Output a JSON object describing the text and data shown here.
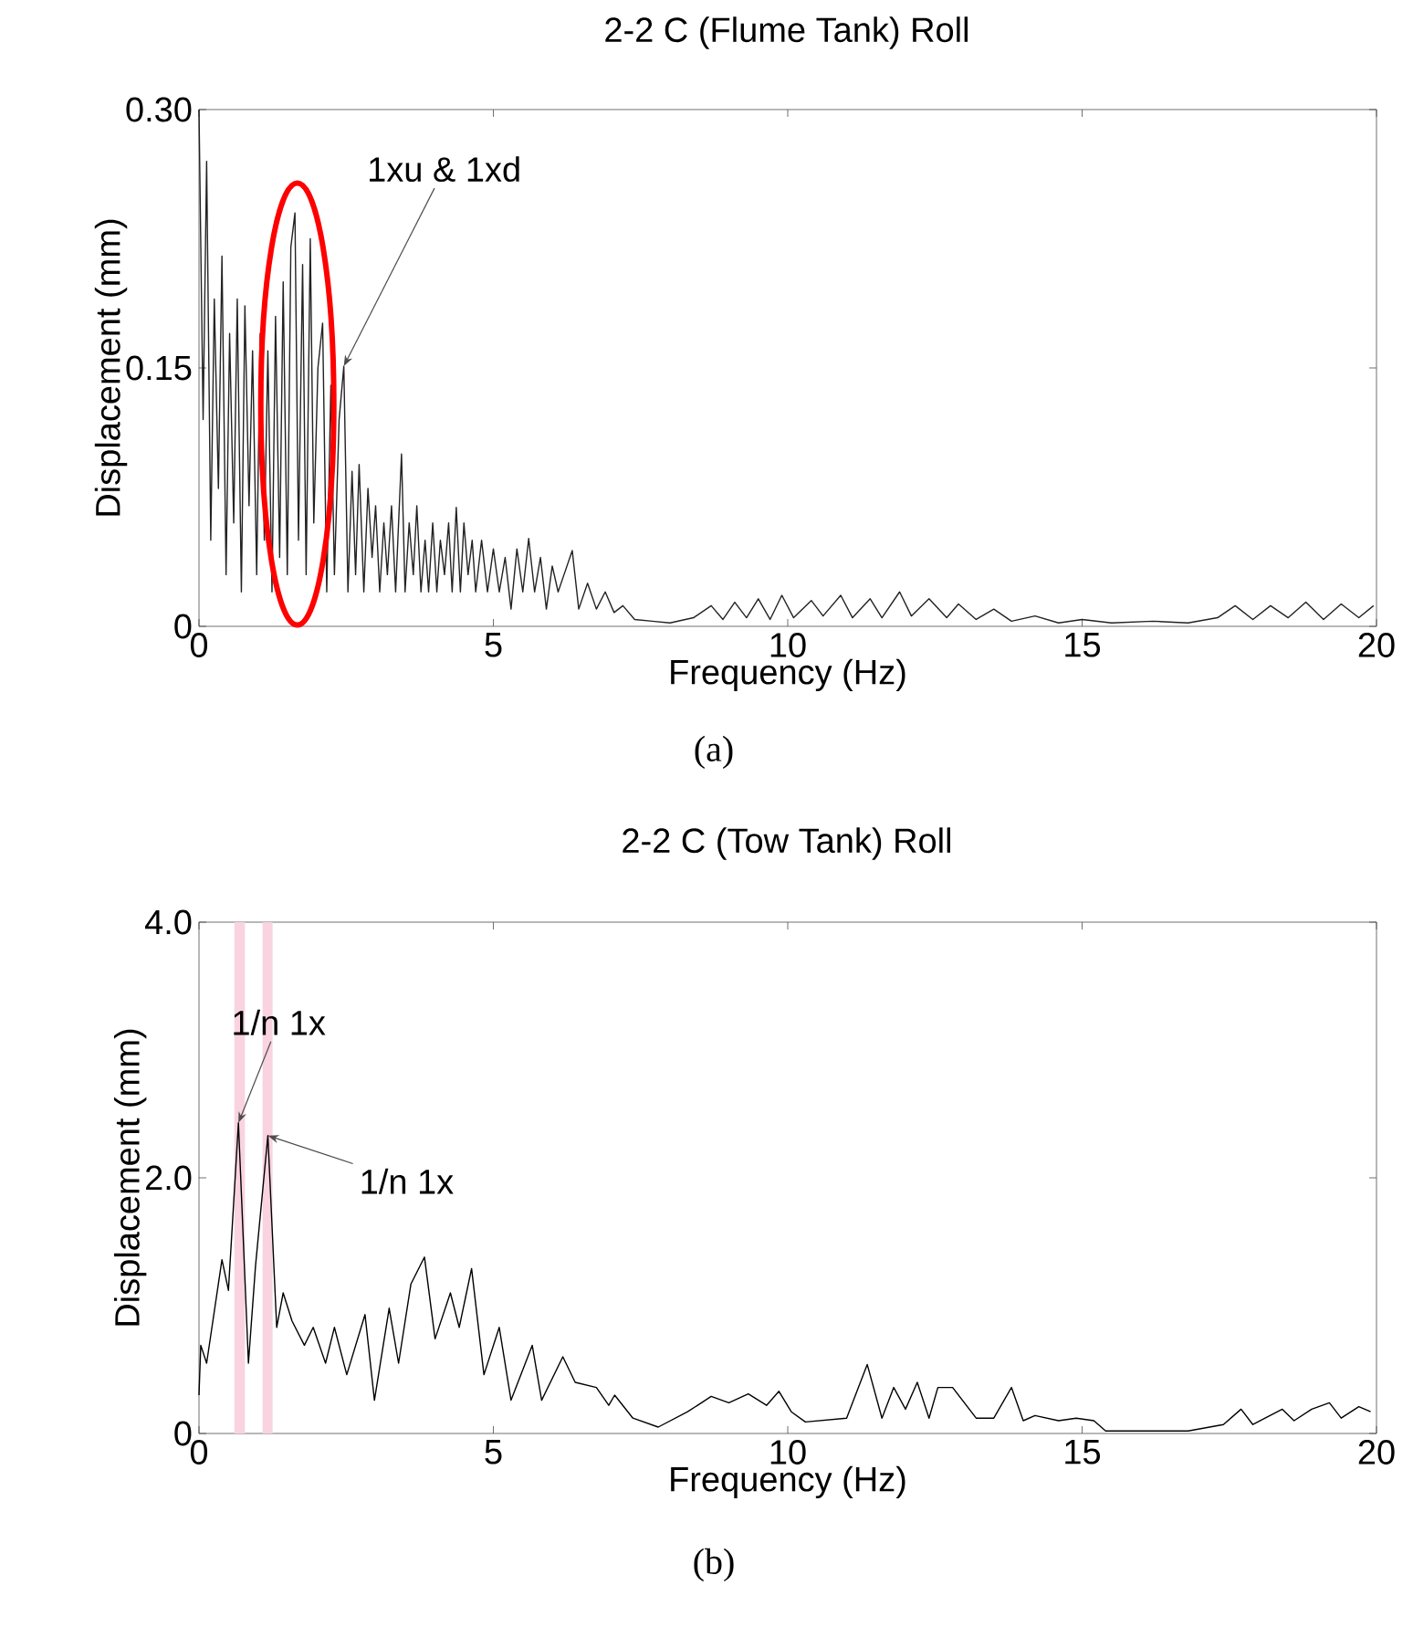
{
  "chart_data": [
    {
      "type": "line",
      "title": "2-2 C (Flume Tank) Roll",
      "xlabel": "Frequency (Hz)",
      "ylabel": "Displacement (mm)",
      "xlim": [
        0,
        20
      ],
      "ylim": [
        0,
        0.3
      ],
      "xticks": [
        0,
        5,
        10,
        15,
        20
      ],
      "yticks": [
        0,
        0.15,
        {
          "value": 0.3,
          "label": "0.30"
        }
      ],
      "series": [
        {
          "color": "#222222",
          "x": [
            0,
            0.07,
            0.13,
            0.2,
            0.26,
            0.33,
            0.39,
            0.46,
            0.52,
            0.59,
            0.65,
            0.72,
            0.78,
            0.85,
            0.91,
            0.98,
            1.04,
            1.11,
            1.17,
            1.24,
            1.3,
            1.37,
            1.43,
            1.5,
            1.56,
            1.63,
            1.69,
            1.76,
            1.82,
            1.89,
            1.95,
            2.02,
            2.1,
            2.17,
            2.24,
            2.3,
            2.38,
            2.46,
            2.53,
            2.6,
            2.66,
            2.72,
            2.8,
            2.87,
            2.94,
            3.0,
            3.07,
            3.14,
            3.2,
            3.27,
            3.34,
            3.44,
            3.5,
            3.57,
            3.64,
            3.7,
            3.77,
            3.84,
            3.9,
            3.97,
            4.04,
            4.1,
            4.17,
            4.24,
            4.3,
            4.37,
            4.44,
            4.5,
            4.57,
            4.64,
            4.7,
            4.8,
            4.9,
            5.0,
            5.1,
            5.2,
            5.3,
            5.4,
            5.5,
            5.6,
            5.7,
            5.8,
            5.9,
            6.0,
            6.1,
            6.2,
            6.34,
            6.45,
            6.6,
            6.75,
            6.9,
            7.05,
            7.2,
            7.4,
            7.7,
            8.0,
            8.4,
            8.7,
            8.9,
            9.1,
            9.3,
            9.5,
            9.7,
            9.9,
            10.1,
            10.4,
            10.6,
            10.9,
            11.1,
            11.4,
            11.6,
            11.9,
            12.1,
            12.4,
            12.7,
            12.9,
            13.2,
            13.5,
            13.8,
            14.2,
            14.6,
            15.0,
            15.5,
            16.2,
            16.8,
            17.3,
            17.6,
            17.9,
            18.2,
            18.5,
            18.8,
            19.1,
            19.4,
            19.7,
            19.95
          ],
          "values": [
            0.3,
            0.12,
            0.27,
            0.05,
            0.19,
            0.08,
            0.215,
            0.03,
            0.17,
            0.06,
            0.19,
            0.02,
            0.186,
            0.07,
            0.16,
            0.03,
            0.17,
            0.05,
            0.16,
            0.02,
            0.18,
            0.04,
            0.2,
            0.03,
            0.22,
            0.24,
            0.05,
            0.21,
            0.03,
            0.225,
            0.06,
            0.15,
            0.176,
            0.02,
            0.14,
            0.03,
            0.12,
            0.151,
            0.02,
            0.09,
            0.03,
            0.094,
            0.02,
            0.08,
            0.04,
            0.07,
            0.02,
            0.06,
            0.03,
            0.07,
            0.02,
            0.1,
            0.02,
            0.06,
            0.03,
            0.07,
            0.02,
            0.05,
            0.02,
            0.06,
            0.02,
            0.05,
            0.03,
            0.06,
            0.02,
            0.069,
            0.02,
            0.06,
            0.03,
            0.05,
            0.02,
            0.05,
            0.02,
            0.045,
            0.02,
            0.04,
            0.01,
            0.045,
            0.02,
            0.051,
            0.02,
            0.04,
            0.01,
            0.035,
            0.02,
            0.03,
            0.044,
            0.01,
            0.025,
            0.01,
            0.02,
            0.008,
            0.012,
            0.004,
            0.003,
            0.002,
            0.005,
            0.012,
            0.004,
            0.014,
            0.005,
            0.016,
            0.004,
            0.018,
            0.005,
            0.015,
            0.006,
            0.018,
            0.005,
            0.016,
            0.005,
            0.02,
            0.006,
            0.016,
            0.005,
            0.013,
            0.004,
            0.01,
            0.003,
            0.006,
            0.002,
            0.004,
            0.002,
            0.003,
            0.002,
            0.005,
            0.012,
            0.004,
            0.012,
            0.005,
            0.014,
            0.004,
            0.013,
            0.005,
            0.012
          ]
        }
      ],
      "annotations": [
        {
          "text": "1xu & 1xd",
          "x": 2.46,
          "y": 0.151
        },
        "(a)"
      ]
    },
    {
      "type": "line",
      "title": "2-2 C (Tow Tank) Roll",
      "xlabel": "Frequency (Hz)",
      "ylabel": "Displacement (mm)",
      "xlim": [
        0,
        20
      ],
      "ylim": [
        0,
        4
      ],
      "xticks": [
        0,
        5,
        10,
        15,
        20
      ],
      "yticks": [
        0,
        {
          "value": 2,
          "label": "2.0"
        },
        {
          "value": 4,
          "label": "4.0"
        }
      ],
      "bands": [
        {
          "axis": "x",
          "from": 0.6,
          "to": 0.78,
          "color": "#f9d3e0"
        },
        {
          "axis": "x",
          "from": 1.08,
          "to": 1.25,
          "color": "#f9d3e0"
        }
      ],
      "series": [
        {
          "color": "#000000",
          "x": [
            0,
            0.03,
            0.13,
            0.39,
            0.5,
            0.67,
            0.84,
            0.96,
            1.17,
            1.32,
            1.43,
            1.58,
            1.79,
            1.94,
            2.15,
            2.3,
            2.51,
            2.82,
            2.98,
            3.23,
            3.39,
            3.6,
            3.83,
            4.01,
            4.27,
            4.42,
            4.63,
            4.84,
            5.1,
            5.3,
            5.66,
            5.82,
            6.18,
            6.39,
            6.75,
            6.96,
            7.06,
            7.37,
            7.8,
            8.3,
            8.7,
            9.0,
            9.33,
            9.64,
            9.85,
            10.06,
            10.3,
            11.0,
            11.35,
            11.6,
            11.8,
            12.0,
            12.2,
            12.4,
            12.55,
            12.8,
            13.2,
            13.5,
            13.8,
            14.0,
            14.2,
            14.6,
            14.9,
            15.2,
            15.4,
            16.8,
            17.4,
            17.7,
            17.9,
            18.4,
            18.6,
            18.9,
            19.2,
            19.4,
            19.7,
            19.9
          ],
          "values": [
            0.3,
            0.69,
            0.55,
            1.36,
            1.12,
            2.43,
            0.55,
            1.31,
            2.33,
            0.83,
            1.1,
            0.88,
            0.69,
            0.83,
            0.55,
            0.83,
            0.46,
            0.93,
            0.26,
            0.98,
            0.55,
            1.17,
            1.38,
            0.74,
            1.1,
            0.83,
            1.29,
            0.46,
            0.83,
            0.26,
            0.69,
            0.26,
            0.6,
            0.4,
            0.36,
            0.22,
            0.3,
            0.12,
            0.05,
            0.17,
            0.29,
            0.24,
            0.31,
            0.22,
            0.33,
            0.17,
            0.09,
            0.12,
            0.54,
            0.12,
            0.36,
            0.19,
            0.4,
            0.12,
            0.36,
            0.36,
            0.12,
            0.12,
            0.36,
            0.1,
            0.14,
            0.1,
            0.12,
            0.1,
            0.02,
            0.02,
            0.07,
            0.19,
            0.07,
            0.19,
            0.1,
            0.19,
            0.24,
            0.12,
            0.21,
            0.17
          ]
        }
      ],
      "annotations": [
        {
          "text": "1/n 1x",
          "x": 0.67,
          "y": 2.43
        },
        {
          "text": "1/n 1x",
          "x": 1.17,
          "y": 2.33
        },
        "(b)"
      ]
    }
  ]
}
